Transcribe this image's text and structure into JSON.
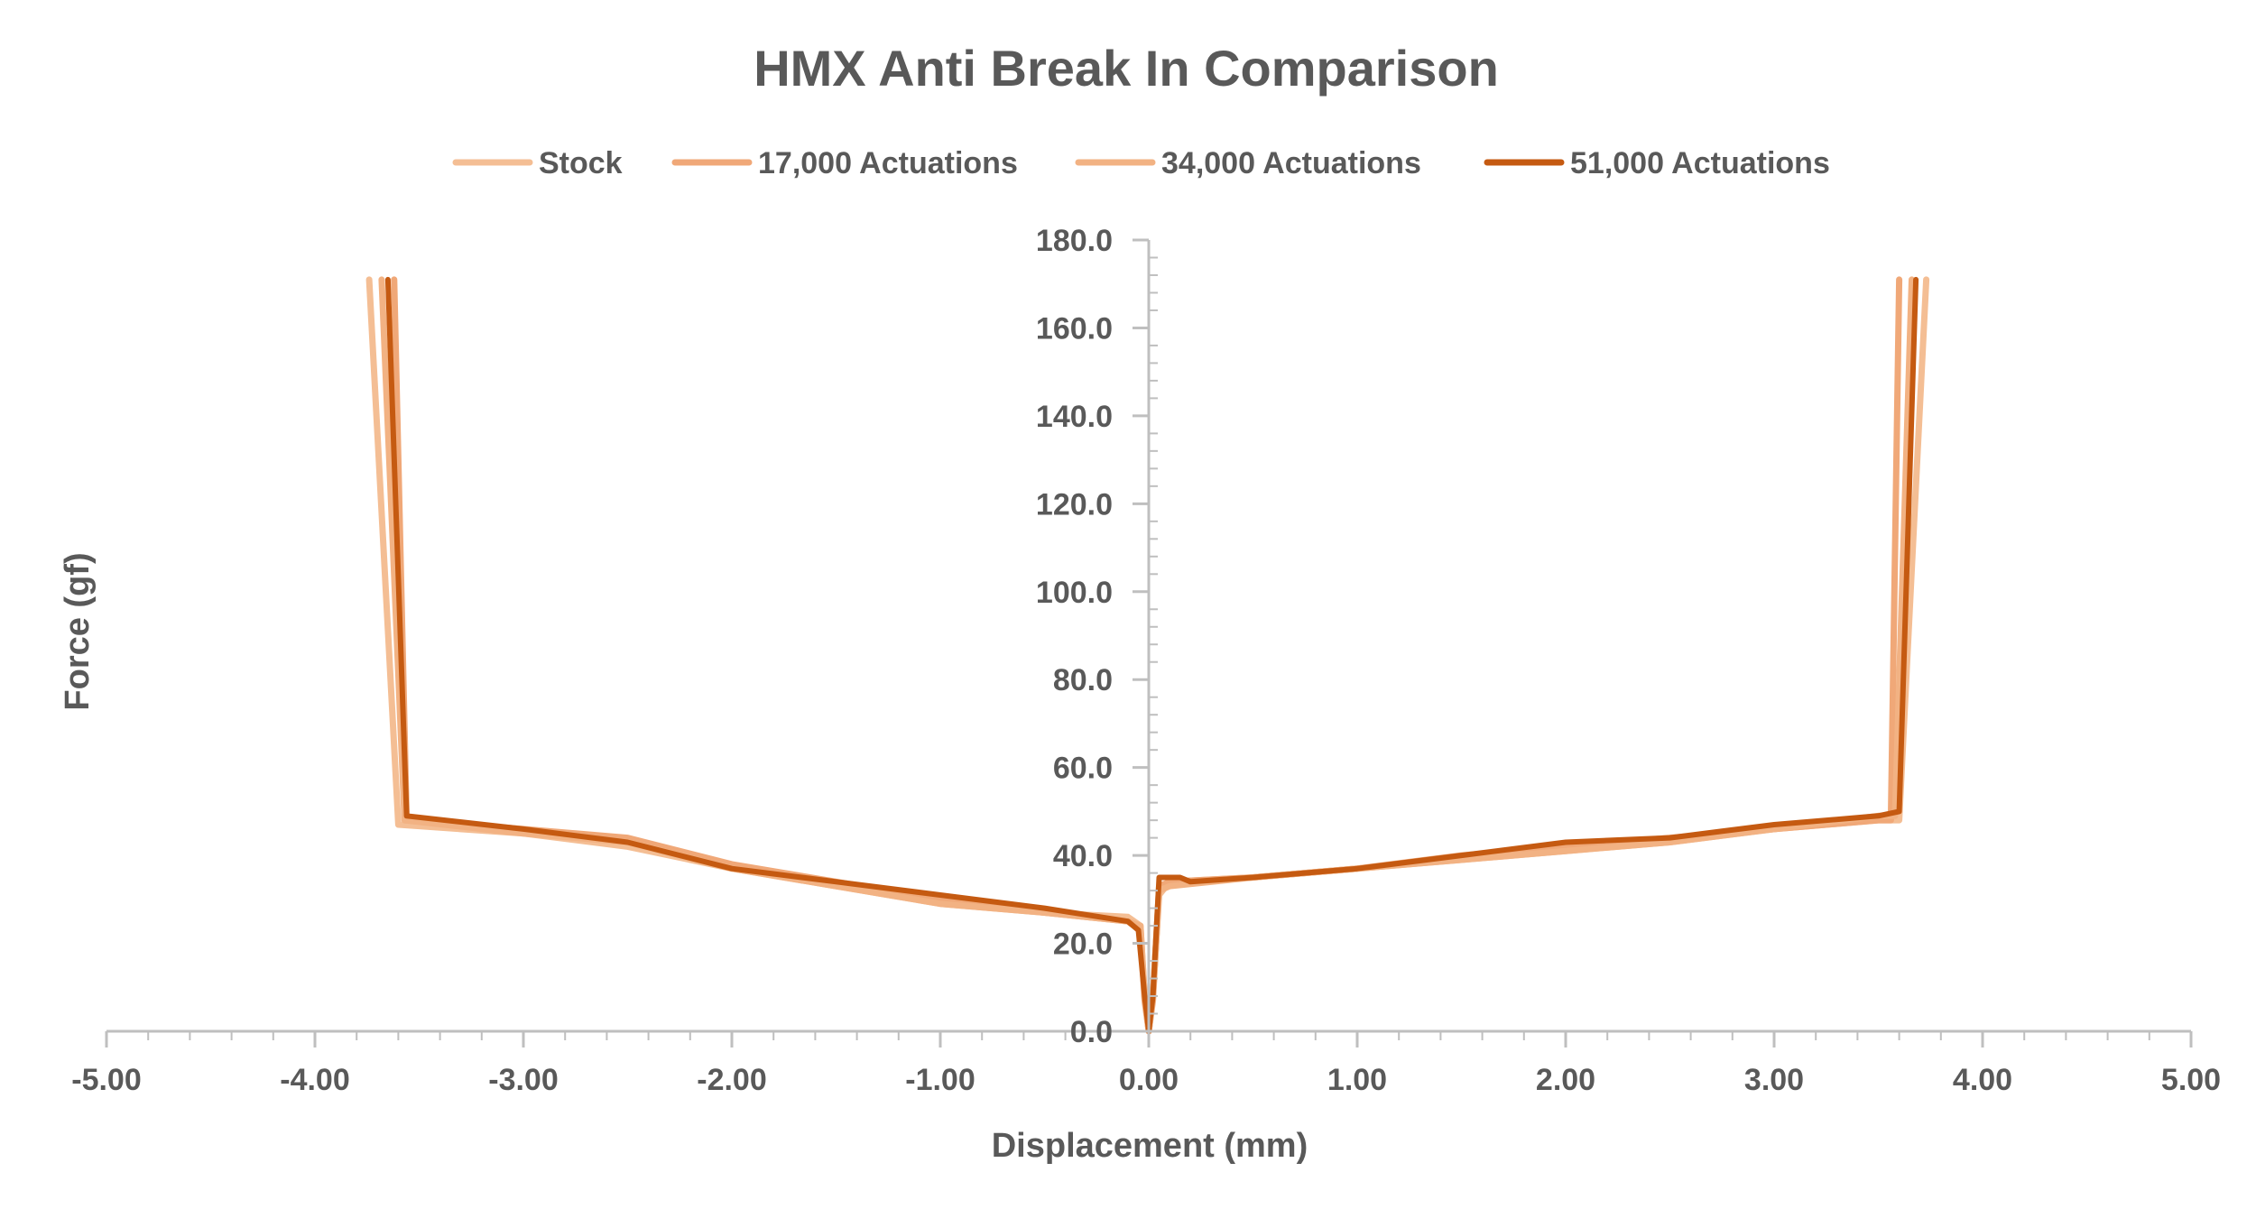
{
  "chart_data": {
    "type": "line",
    "title": "HMX Anti Break In Comparison",
    "xlabel": "Displacement (mm)",
    "ylabel": "Force (gf)",
    "xlim": [
      -5,
      5
    ],
    "ylim": [
      0,
      180
    ],
    "xticks": [
      "-5.00",
      "-4.00",
      "-3.00",
      "-2.00",
      "-1.00",
      "0.00",
      "1.00",
      "2.00",
      "3.00",
      "4.00",
      "5.00"
    ],
    "yticks": [
      "0.0",
      "20.0",
      "40.0",
      "60.0",
      "80.0",
      "100.0",
      "120.0",
      "140.0",
      "160.0",
      "180.0"
    ],
    "grid": false,
    "legend_position": "top",
    "series": [
      {
        "name": "Stock",
        "color": "#F4BE94",
        "points": [
          [
            -3.74,
            171
          ],
          [
            -3.6,
            47
          ],
          [
            -3.0,
            45
          ],
          [
            -2.5,
            42
          ],
          [
            -2.0,
            37
          ],
          [
            -1.5,
            33
          ],
          [
            -1.0,
            29
          ],
          [
            -0.5,
            27
          ],
          [
            -0.1,
            26
          ],
          [
            -0.04,
            24
          ],
          [
            -0.02,
            8
          ],
          [
            0,
            0
          ],
          [
            0.02,
            8
          ],
          [
            0.05,
            31
          ],
          [
            0.1,
            34
          ],
          [
            0.5,
            35
          ],
          [
            1.0,
            37
          ],
          [
            1.5,
            39
          ],
          [
            2.0,
            41
          ],
          [
            2.5,
            43
          ],
          [
            3.0,
            46
          ],
          [
            3.5,
            48
          ],
          [
            3.6,
            48
          ],
          [
            3.73,
            171
          ]
        ]
      },
      {
        "name": "17,000 Actuations",
        "color": "#F0A878",
        "points": [
          [
            -3.62,
            171
          ],
          [
            -3.56,
            48
          ],
          [
            -3.0,
            46
          ],
          [
            -2.5,
            44
          ],
          [
            -2.0,
            38
          ],
          [
            -1.5,
            34
          ],
          [
            -1.0,
            30
          ],
          [
            -0.5,
            27
          ],
          [
            -0.1,
            25
          ],
          [
            -0.04,
            23
          ],
          [
            -0.02,
            7
          ],
          [
            0,
            0
          ],
          [
            0.02,
            7
          ],
          [
            0.05,
            33
          ],
          [
            0.1,
            34
          ],
          [
            0.5,
            35
          ],
          [
            1.0,
            37
          ],
          [
            1.5,
            40
          ],
          [
            2.0,
            42
          ],
          [
            2.5,
            44
          ],
          [
            3.0,
            46
          ],
          [
            3.5,
            48
          ],
          [
            3.56,
            48
          ],
          [
            3.6,
            171
          ]
        ]
      },
      {
        "name": "34,000 Actuations",
        "color": "#F2B283",
        "points": [
          [
            -3.68,
            171
          ],
          [
            -3.57,
            48
          ],
          [
            -3.0,
            45
          ],
          [
            -2.5,
            43
          ],
          [
            -2.0,
            37
          ],
          [
            -1.5,
            33
          ],
          [
            -1.0,
            29
          ],
          [
            -0.5,
            27
          ],
          [
            -0.1,
            25
          ],
          [
            -0.04,
            24
          ],
          [
            -0.02,
            8
          ],
          [
            0,
            0
          ],
          [
            0.02,
            8
          ],
          [
            0.05,
            32
          ],
          [
            0.1,
            33
          ],
          [
            0.5,
            35
          ],
          [
            1.0,
            37
          ],
          [
            1.5,
            39
          ],
          [
            2.0,
            41
          ],
          [
            2.5,
            43
          ],
          [
            3.0,
            46
          ],
          [
            3.5,
            49
          ],
          [
            3.58,
            49
          ],
          [
            3.66,
            171
          ]
        ]
      },
      {
        "name": "51,000 Actuations",
        "color": "#C55A11",
        "points": [
          [
            -3.65,
            171
          ],
          [
            -3.56,
            49
          ],
          [
            -3.0,
            46
          ],
          [
            -2.5,
            43
          ],
          [
            -2.0,
            37
          ],
          [
            -1.5,
            34
          ],
          [
            -1.0,
            31
          ],
          [
            -0.5,
            28
          ],
          [
            -0.1,
            25
          ],
          [
            -0.05,
            23
          ],
          [
            -0.02,
            8
          ],
          [
            0,
            0
          ],
          [
            0.02,
            8
          ],
          [
            0.05,
            35
          ],
          [
            0.15,
            35
          ],
          [
            0.2,
            34
          ],
          [
            0.5,
            35
          ],
          [
            1.0,
            37
          ],
          [
            1.5,
            40
          ],
          [
            2.0,
            43
          ],
          [
            2.5,
            44
          ],
          [
            3.0,
            47
          ],
          [
            3.5,
            49
          ],
          [
            3.6,
            50
          ],
          [
            3.68,
            171
          ]
        ]
      }
    ]
  }
}
